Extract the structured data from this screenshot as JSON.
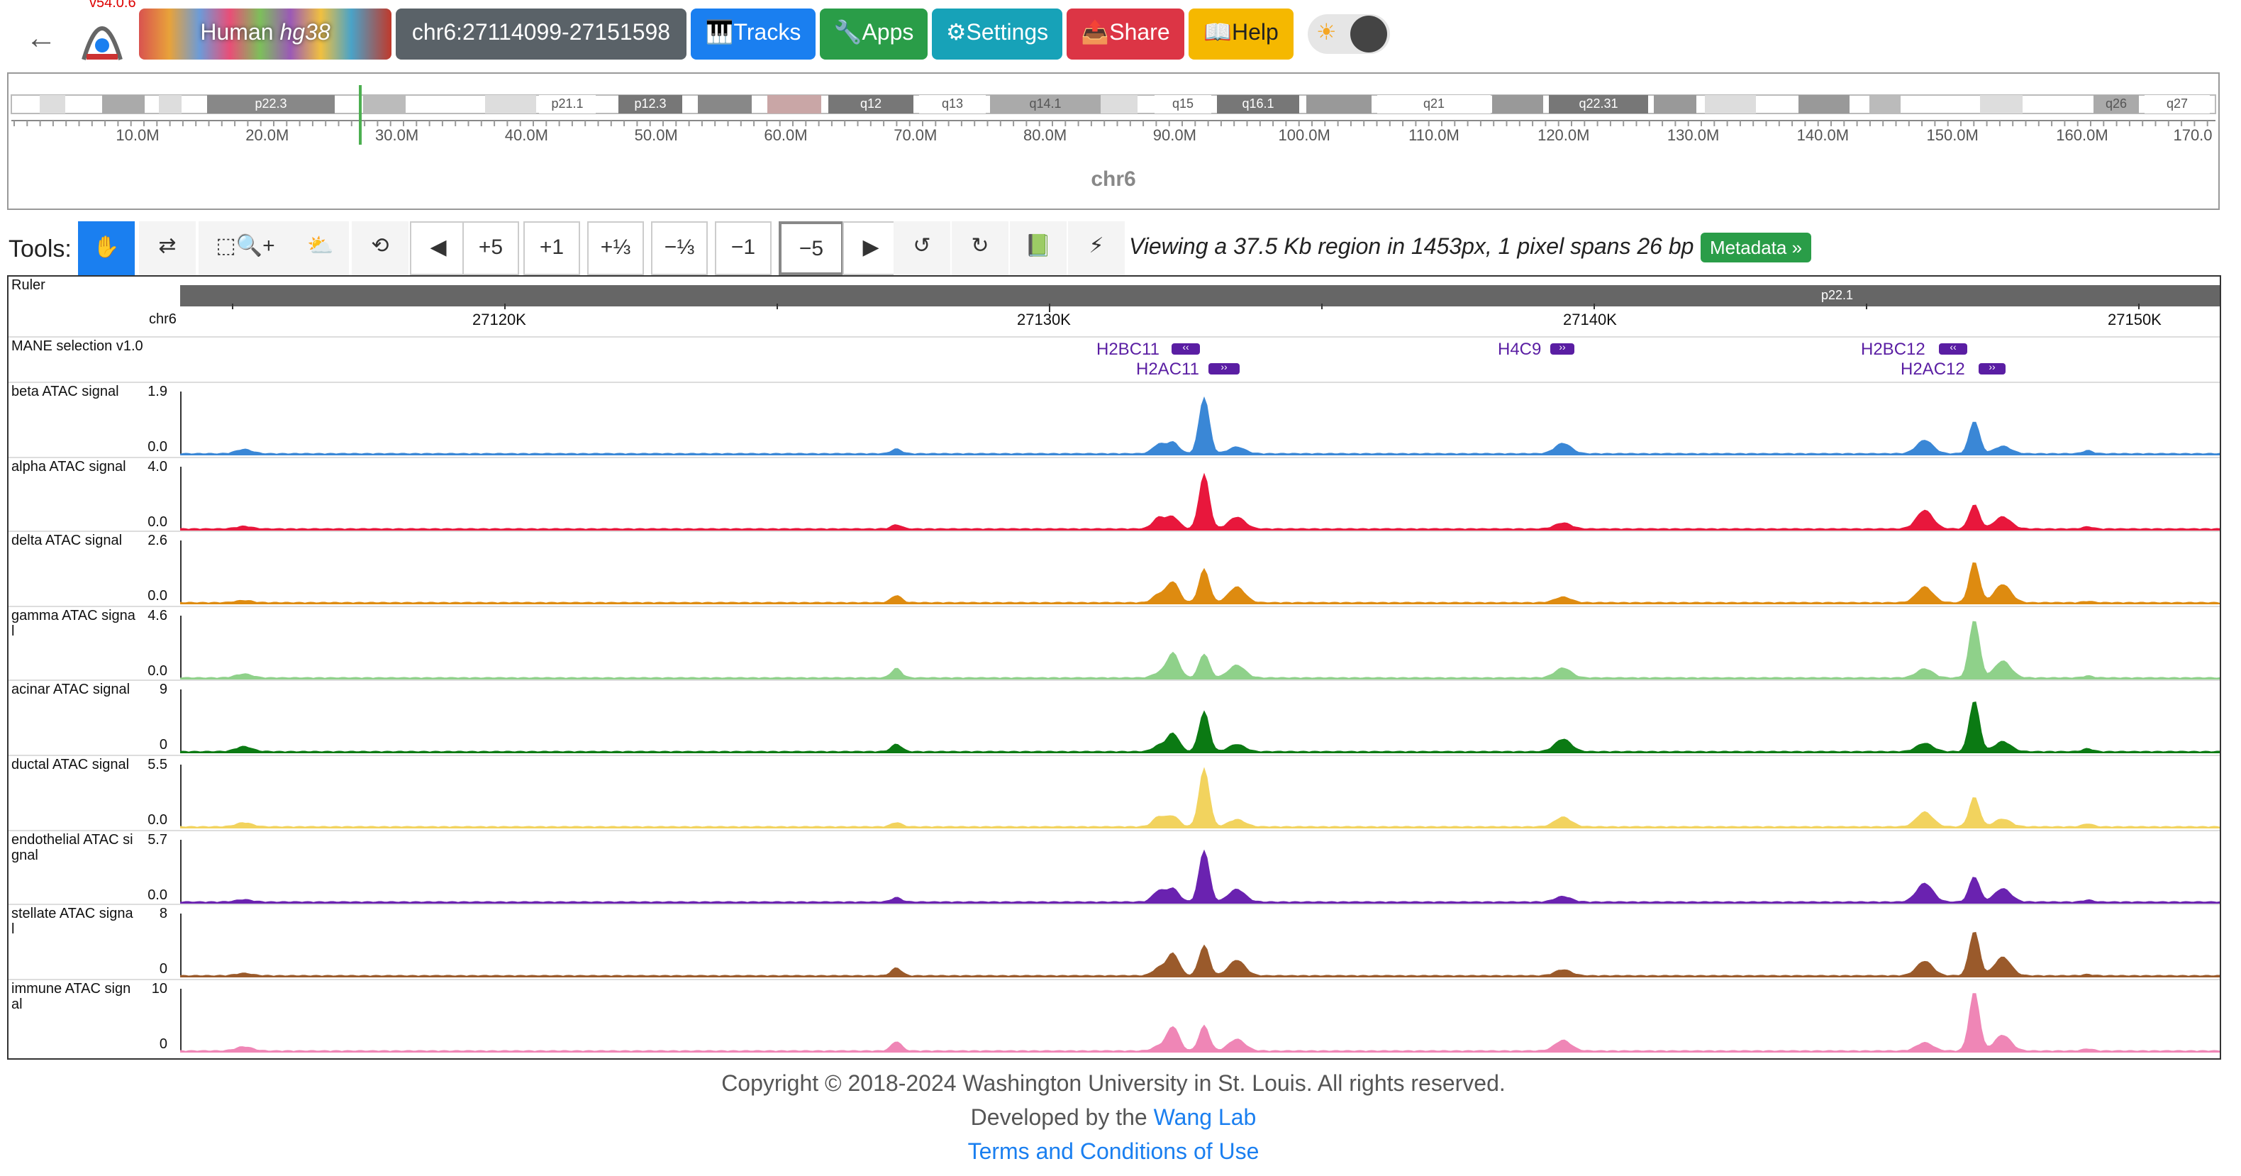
{
  "nav": {
    "version": "v54.0.6",
    "genome_prefix": "Human",
    "genome_name": "hg38",
    "locus": "chr6:27114099-27151598",
    "tracks_label": "🎹Tracks",
    "apps_label": "🔧Apps",
    "settings_label": "⚙Settings",
    "share_label": "📤Share",
    "help_label": "📖Help",
    "theme_icon": "☀"
  },
  "ideogram": {
    "chrom": "chr6",
    "bands": [
      {
        "label": "p22.3",
        "shade": "#888"
      },
      {
        "label": "p21.1",
        "shade": "#fff"
      },
      {
        "label": "p12.3",
        "shade": "#777"
      },
      {
        "label": "q12",
        "shade": "#777"
      },
      {
        "label": "q13",
        "shade": "#fff"
      },
      {
        "label": "q14.1",
        "shade": "#aaa"
      },
      {
        "label": "q15",
        "shade": "#fff"
      },
      {
        "label": "q16.1",
        "shade": "#777"
      },
      {
        "label": "q21",
        "shade": "#fff"
      },
      {
        "label": "q22.31",
        "shade": "#777"
      },
      {
        "label": "q26",
        "shade": "#aaa"
      },
      {
        "label": "q27",
        "shade": "#fff"
      }
    ],
    "ticks": [
      "10.0M",
      "20.0M",
      "30.0M",
      "40.0M",
      "50.0M",
      "60.0M",
      "70.0M",
      "80.0M",
      "90.0M",
      "100.0M",
      "110.0M",
      "120.0M",
      "130.0M",
      "140.0M",
      "150.0M",
      "160.0M",
      "170.0"
    ]
  },
  "tools": {
    "label": "Tools:",
    "buttons": {
      "drag": "✋",
      "reorder": "⇄",
      "select": "⬚🔍+",
      "cloud": "⛅",
      "refresh": "⟲",
      "left": "◀",
      "zoom_in5": "+5",
      "zoom_in1": "+1",
      "zoom_in_third": "+⅓",
      "zoom_out_third": "−⅓",
      "zoom_out1": "−1",
      "zoom_out5": "−5",
      "right": "▶",
      "undo": "↺",
      "redo": "↻",
      "book": "📗",
      "bolt": "⚡"
    },
    "viewing_text": "Viewing a 37.5 Kb region in 1453px, 1 pixel spans 26 bp",
    "metadata_label": "Metadata »"
  },
  "ruler": {
    "label": "Ruler",
    "chrom": "chr6",
    "cytoband": "p22.1",
    "ticks": [
      "27120K",
      "27130K",
      "27140K",
      "27150K"
    ]
  },
  "genes": {
    "track_label": "MANE selection v1.0",
    "items": [
      "H2BC11",
      "H2AC11",
      "H4C9",
      "H2BC12",
      "H2AC12"
    ]
  },
  "tracks": [
    {
      "label": "beta ATAC signal",
      "max": "1.9",
      "min": "0.0",
      "color": "#3a87d6"
    },
    {
      "label": "alpha ATAC signal",
      "max": "4.0",
      "min": "0.0",
      "color": "#e8173c"
    },
    {
      "label": "delta ATAC signal",
      "max": "2.6",
      "min": "0.0",
      "color": "#de8b10"
    },
    {
      "label": "gamma ATAC signa\nl",
      "max": "4.6",
      "min": "0.0",
      "color": "#8fd18a"
    },
    {
      "label": "acinar ATAC signal",
      "max": "9",
      "min": "0",
      "color": "#0b7a13"
    },
    {
      "label": "ductal ATAC signal",
      "max": "5.5",
      "min": "0.0",
      "color": "#f2d35e"
    },
    {
      "label": "endothelial ATAC si\ngnal",
      "max": "5.7",
      "min": "0.0",
      "color": "#6a22b0"
    },
    {
      "label": "stellate ATAC signa\nl",
      "max": "8",
      "min": "0",
      "color": "#9a5a2b"
    },
    {
      "label": "immune ATAC sign\nal",
      "max": "10",
      "min": "0",
      "color": "#ef86b6"
    }
  ],
  "footer": {
    "copyright": "Copyright © 2018-2024 Washington University in St. Louis. All rights reserved.",
    "developed_prefix": "Developed by the ",
    "lab_link": "Wang Lab",
    "terms_link": "Terms and Conditions of Use"
  }
}
